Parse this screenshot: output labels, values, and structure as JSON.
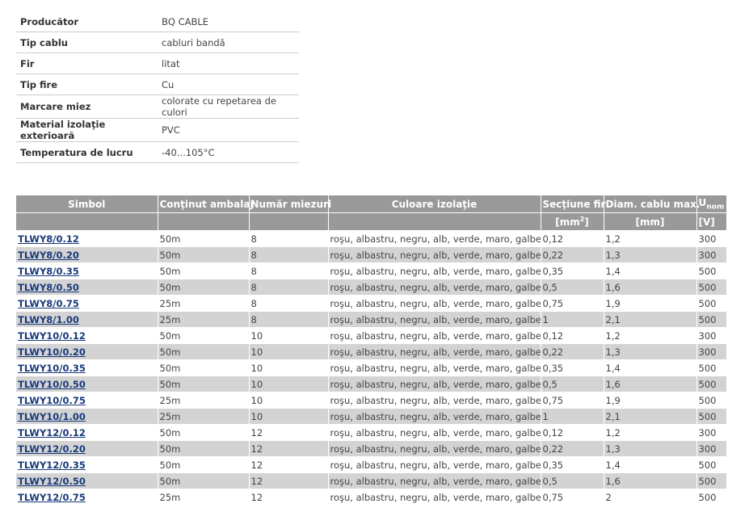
{
  "specs": [
    {
      "label": "Producător",
      "value": "BQ CABLE"
    },
    {
      "label": "Tip cablu",
      "value": "cabluri bandă"
    },
    {
      "label": "Fir",
      "value": "litat"
    },
    {
      "label": "Tip fire",
      "value": "Cu"
    },
    {
      "label": "Marcare miez",
      "value": "colorate cu repetarea de culori"
    },
    {
      "label": "Material izolaţie exterioară",
      "value": "PVC"
    },
    {
      "label": "Temperatura de lucru",
      "value": "-40...105°C"
    }
  ],
  "table": {
    "headers": {
      "simbol": "Simbol",
      "continut": "Conţinut ambalaj",
      "numar": "Număr miezuri",
      "culoare": "Culoare izolaţie",
      "sectiune": "Secţiune fir",
      "diam": "Diam. cablu max.",
      "unom_u": "U",
      "unom_sub": "nom"
    },
    "units": {
      "sectiune": "[mm",
      "sectiune_sup": "2",
      "sectiune_end": "]",
      "diam": "[mm]",
      "unom": "[V]"
    },
    "rows": [
      [
        "TLWY8/0.12",
        "50m",
        "8",
        "roşu, albastru, negru, alb, verde, maro, galben",
        "0,12",
        "1,2",
        "300"
      ],
      [
        "TLWY8/0.20",
        "50m",
        "8",
        "roşu, albastru, negru, alb, verde, maro, galben",
        "0,22",
        "1,3",
        "300"
      ],
      [
        "TLWY8/0.35",
        "50m",
        "8",
        "roşu, albastru, negru, alb, verde, maro, galben",
        "0,35",
        "1,4",
        "500"
      ],
      [
        "TLWY8/0.50",
        "50m",
        "8",
        "roşu, albastru, negru, alb, verde, maro, galben",
        "0,5",
        "1,6",
        "500"
      ],
      [
        "TLWY8/0.75",
        "25m",
        "8",
        "roşu, albastru, negru, alb, verde, maro, galben",
        "0,75",
        "1,9",
        "500"
      ],
      [
        "TLWY8/1.00",
        "25m",
        "8",
        "roşu, albastru, negru, alb, verde, maro, galben",
        "1",
        "2,1",
        "500"
      ],
      [
        "TLWY10/0.12",
        "50m",
        "10",
        "roşu, albastru, negru, alb, verde, maro, galben",
        "0,12",
        "1,2",
        "300"
      ],
      [
        "TLWY10/0.20",
        "50m",
        "10",
        "roşu, albastru, negru, alb, verde, maro, galben",
        "0,22",
        "1,3",
        "300"
      ],
      [
        "TLWY10/0.35",
        "50m",
        "10",
        "roşu, albastru, negru, alb, verde, maro, galben",
        "0,35",
        "1,4",
        "500"
      ],
      [
        "TLWY10/0.50",
        "50m",
        "10",
        "roşu, albastru, negru, alb, verde, maro, galben",
        "0,5",
        "1,6",
        "500"
      ],
      [
        "TLWY10/0.75",
        "25m",
        "10",
        "roşu, albastru, negru, alb, verde, maro, galben",
        "0,75",
        "1,9",
        "500"
      ],
      [
        "TLWY10/1.00",
        "25m",
        "10",
        "roşu, albastru, negru, alb, verde, maro, galben",
        "1",
        "2,1",
        "500"
      ],
      [
        "TLWY12/0.12",
        "50m",
        "12",
        "roşu, albastru, negru, alb, verde, maro, galben",
        "0,12",
        "1,2",
        "300"
      ],
      [
        "TLWY12/0.20",
        "50m",
        "12",
        "roşu, albastru, negru, alb, verde, maro, galben",
        "0,22",
        "1,3",
        "300"
      ],
      [
        "TLWY12/0.35",
        "50m",
        "12",
        "roşu, albastru, negru, alb, verde, maro, galben",
        "0,35",
        "1,4",
        "500"
      ],
      [
        "TLWY12/0.50",
        "50m",
        "12",
        "roşu, albastru, negru, alb, verde, maro, galben",
        "0,5",
        "1,6",
        "500"
      ],
      [
        "TLWY12/0.75",
        "25m",
        "12",
        "roşu, albastru, negru, alb, verde, maro, galben",
        "0,75",
        "2",
        "500"
      ]
    ]
  }
}
